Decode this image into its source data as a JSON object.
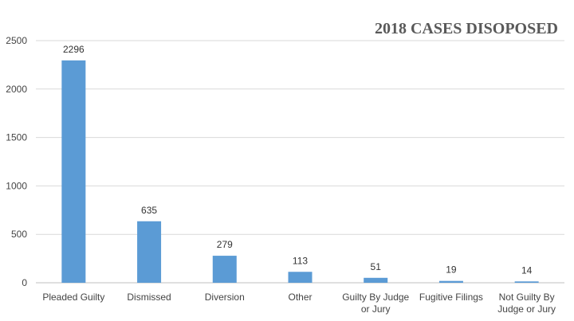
{
  "chart_data": {
    "type": "bar",
    "title": "2018 CASES DISOPOSED",
    "categories": [
      [
        "Pleaded Guilty"
      ],
      [
        "Dismissed"
      ],
      [
        "Diversion"
      ],
      [
        "Other"
      ],
      [
        "Guilty By Judge",
        "or Jury"
      ],
      [
        "Fugitive Filings"
      ],
      [
        "Not Guilty By",
        "Judge or Jury"
      ]
    ],
    "values": [
      2296,
      635,
      279,
      113,
      51,
      19,
      14
    ],
    "ylim": [
      0,
      2500
    ],
    "yticks": [
      0,
      500,
      1000,
      1500,
      2000,
      2500
    ],
    "grid": true,
    "bar_color": "#5b9bd5"
  }
}
